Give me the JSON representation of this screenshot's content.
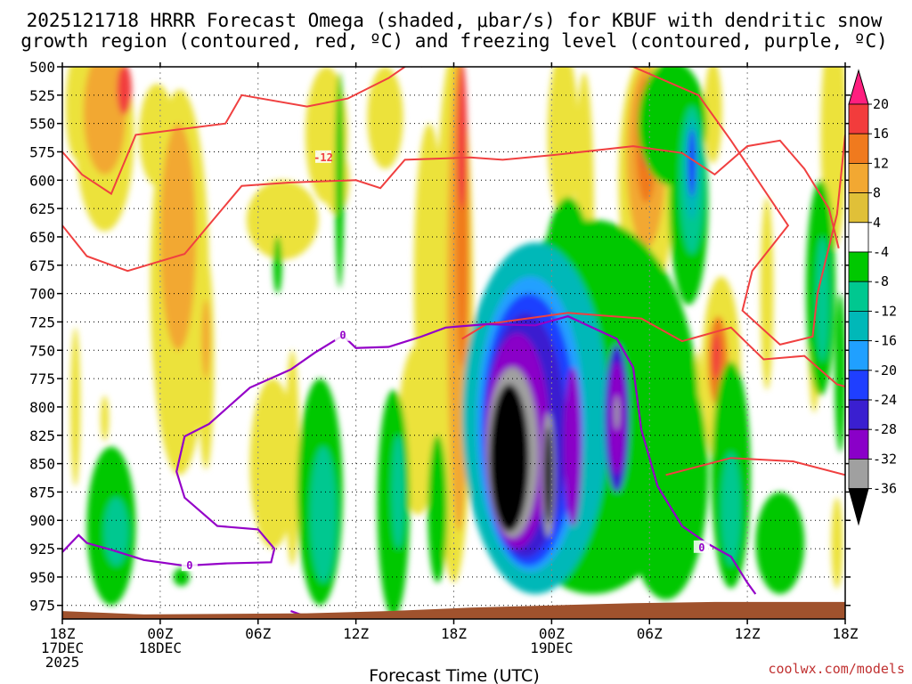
{
  "title_line1": "2025121718 HRRR Forecast Omega (shaded, μbar/s) for KBUF with dendritic snow",
  "title_line2": "growth region (contoured, red, ºC) and freezing level (contoured, purple, ºC)",
  "credit": "coolwx.com/models",
  "chart_data": {
    "type": "heatmap",
    "title": "2025121718 HRRR Forecast Omega (shaded, μbar/s) for KBUF with dendritic snow growth region (contoured, red, ºC) and freezing level (contoured, purple, ºC)",
    "xlabel": "Forecast Time (UTC)",
    "ylabel": "",
    "x_ticks": [
      {
        "h": 0,
        "l1": "18Z",
        "l2": "17DEC",
        "l3": "2025"
      },
      {
        "h": 6,
        "l1": "00Z",
        "l2": "18DEC",
        "l3": ""
      },
      {
        "h": 12,
        "l1": "06Z",
        "l2": "",
        "l3": ""
      },
      {
        "h": 18,
        "l1": "12Z",
        "l2": "",
        "l3": ""
      },
      {
        "h": 24,
        "l1": "18Z",
        "l2": "",
        "l3": ""
      },
      {
        "h": 30,
        "l1": "00Z",
        "l2": "19DEC",
        "l3": ""
      },
      {
        "h": 36,
        "l1": "06Z",
        "l2": "",
        "l3": ""
      },
      {
        "h": 42,
        "l1": "12Z",
        "l2": "",
        "l3": ""
      },
      {
        "h": 48,
        "l1": "18Z",
        "l2": "",
        "l3": ""
      }
    ],
    "xlim": [
      0,
      48
    ],
    "y_ticks": [
      "500",
      "525",
      "550",
      "575",
      "600",
      "625",
      "650",
      "675",
      "700",
      "725",
      "750",
      "775",
      "800",
      "825",
      "850",
      "875",
      "900",
      "925",
      "950",
      "975"
    ],
    "ylim": [
      500,
      987
    ],
    "grid": true,
    "colorbar": {
      "labels": [
        "20",
        "16",
        "12",
        "8",
        "4",
        "-4",
        "-8",
        "-12",
        "-16",
        "-20",
        "-24",
        "-28",
        "-32",
        "-36"
      ],
      "colors": [
        "#ff1f7f",
        "#f23c3c",
        "#f07a1e",
        "#f2a832",
        "#e0c038",
        "#ece23a",
        "#ffffff",
        "#00c800",
        "#00c890",
        "#00b8b8",
        "#20a0ff",
        "#1f3fff",
        "#3a1fd0",
        "#8a00c8",
        "#a0a0a0",
        "#000000"
      ]
    },
    "omega_cells": [
      {
        "h": 0.9,
        "p": 535,
        "dh": 1.4,
        "dp": 95,
        "v": 6
      },
      {
        "h": 2.6,
        "p": 560,
        "dh": 3.6,
        "dp": 170,
        "v": 6
      },
      {
        "h": 2.6,
        "p": 540,
        "dh": 2.6,
        "dp": 110,
        "v": 10
      },
      {
        "h": 3.8,
        "p": 520,
        "dh": 0.9,
        "dp": 45,
        "v": 18
      },
      {
        "h": 5.8,
        "p": 560,
        "dh": 2.2,
        "dp": 90,
        "v": 6
      },
      {
        "h": 7.2,
        "p": 690,
        "dh": 3.6,
        "dp": 340,
        "v": 6
      },
      {
        "h": 7.1,
        "p": 650,
        "dh": 2.2,
        "dp": 200,
        "v": 9
      },
      {
        "h": 8.8,
        "p": 760,
        "dh": 1.0,
        "dp": 190,
        "v": 6
      },
      {
        "h": 8.8,
        "p": 740,
        "dh": 0.5,
        "dp": 70,
        "v": 10
      },
      {
        "h": 0.8,
        "p": 800,
        "dh": 0.6,
        "dp": 140,
        "v": 5
      },
      {
        "h": 2.6,
        "p": 810,
        "dh": 0.5,
        "dp": 40,
        "v": 5
      },
      {
        "h": 12.9,
        "p": 850,
        "dh": 2.8,
        "dp": 150,
        "v": 5
      },
      {
        "h": 14.1,
        "p": 845,
        "dh": 0.9,
        "dp": 190,
        "v": 6
      },
      {
        "h": 13.5,
        "p": 635,
        "dh": 4.4,
        "dp": 70,
        "v": 5
      },
      {
        "h": 16.2,
        "p": 560,
        "dh": 2.6,
        "dp": 120,
        "v": 5
      },
      {
        "h": 16.8,
        "p": 600,
        "dh": 1.6,
        "dp": 60,
        "v": 6
      },
      {
        "h": 19.8,
        "p": 545,
        "dh": 2.2,
        "dp": 90,
        "v": 5
      },
      {
        "h": 21.8,
        "p": 820,
        "dh": 2.4,
        "dp": 150,
        "v": 6
      },
      {
        "h": 22.5,
        "p": 690,
        "dh": 1.9,
        "dp": 280,
        "v": 6
      },
      {
        "h": 24.0,
        "p": 720,
        "dh": 2.4,
        "dp": 470,
        "v": 6
      },
      {
        "h": 24.3,
        "p": 700,
        "dh": 1.4,
        "dp": 420,
        "v": 9
      },
      {
        "h": 24.5,
        "p": 630,
        "dh": 0.8,
        "dp": 270,
        "v": 13
      },
      {
        "h": 24.5,
        "p": 560,
        "dh": 0.6,
        "dp": 130,
        "v": 18
      },
      {
        "h": 30.7,
        "p": 560,
        "dh": 1.9,
        "dp": 150,
        "v": 5
      },
      {
        "h": 32.0,
        "p": 635,
        "dh": 1.2,
        "dp": 260,
        "v": 6
      },
      {
        "h": 34.3,
        "p": 780,
        "dh": 0.6,
        "dp": 220,
        "v": 5
      },
      {
        "h": 35.8,
        "p": 600,
        "dh": 3.4,
        "dp": 220,
        "v": 7
      },
      {
        "h": 35.8,
        "p": 580,
        "dh": 2.4,
        "dp": 160,
        "v": 10
      },
      {
        "h": 35.8,
        "p": 565,
        "dh": 1.3,
        "dp": 110,
        "v": 14
      },
      {
        "h": 35.8,
        "p": 555,
        "dh": 0.8,
        "dp": 70,
        "v": 19
      },
      {
        "h": 37.4,
        "p": 520,
        "dh": 0.9,
        "dp": 60,
        "v": 5
      },
      {
        "h": 38.9,
        "p": 615,
        "dh": 0.8,
        "dp": 160,
        "v": 5
      },
      {
        "h": 39.0,
        "p": 800,
        "dh": 0.5,
        "dp": 100,
        "v": 5
      },
      {
        "h": 40.4,
        "p": 770,
        "dh": 2.4,
        "dp": 170,
        "v": 6
      },
      {
        "h": 40.2,
        "p": 760,
        "dh": 1.2,
        "dp": 80,
        "v": 12
      },
      {
        "h": 40.1,
        "p": 755,
        "dh": 0.5,
        "dp": 40,
        "v": 18
      },
      {
        "h": 39.9,
        "p": 540,
        "dh": 1.1,
        "dp": 90,
        "v": 5
      },
      {
        "h": 43.2,
        "p": 700,
        "dh": 0.8,
        "dp": 170,
        "v": 5
      },
      {
        "h": 46.1,
        "p": 720,
        "dh": 0.8,
        "dp": 170,
        "v": 5
      },
      {
        "h": 47.3,
        "p": 560,
        "dh": 1.6,
        "dp": 200,
        "v": 5
      },
      {
        "h": 47.5,
        "p": 920,
        "dh": 0.7,
        "dp": 80,
        "v": 5
      },
      {
        "h": 3.0,
        "p": 905,
        "dh": 3.0,
        "dp": 140,
        "v": -6
      },
      {
        "h": 3.3,
        "p": 910,
        "dh": 1.5,
        "dp": 60,
        "v": -10
      },
      {
        "h": 7.3,
        "p": 950,
        "dh": 1.0,
        "dp": 16,
        "v": -6
      },
      {
        "h": 13.2,
        "p": 675,
        "dh": 0.55,
        "dp": 50,
        "v": -6
      },
      {
        "h": 17.0,
        "p": 600,
        "dh": 0.55,
        "dp": 190,
        "v": -6
      },
      {
        "h": 15.8,
        "p": 875,
        "dh": 2.8,
        "dp": 200,
        "v": -6
      },
      {
        "h": 16.0,
        "p": 895,
        "dh": 1.6,
        "dp": 120,
        "v": -10
      },
      {
        "h": 20.3,
        "p": 885,
        "dh": 2.0,
        "dp": 200,
        "v": -6
      },
      {
        "h": 20.6,
        "p": 875,
        "dh": 0.8,
        "dp": 100,
        "v": -10
      },
      {
        "h": 23.0,
        "p": 890,
        "dh": 1.2,
        "dp": 130,
        "v": -6
      },
      {
        "h": 32.5,
        "p": 800,
        "dh": 13.0,
        "dp": 330,
        "v": -6
      },
      {
        "h": 31.0,
        "p": 700,
        "dh": 3.2,
        "dp": 170,
        "v": -6
      },
      {
        "h": 37.0,
        "p": 860,
        "dh": 5.2,
        "dp": 220,
        "v": -6
      },
      {
        "h": 37.4,
        "p": 550,
        "dh": 4.2,
        "dp": 110,
        "v": -6
      },
      {
        "h": 38.4,
        "p": 620,
        "dh": 2.4,
        "dp": 180,
        "v": -6
      },
      {
        "h": 38.6,
        "p": 600,
        "dh": 1.5,
        "dp": 130,
        "v": -10
      },
      {
        "h": 38.6,
        "p": 590,
        "dh": 0.9,
        "dp": 90,
        "v": -14
      },
      {
        "h": 38.6,
        "p": 585,
        "dh": 0.5,
        "dp": 60,
        "v": -20
      },
      {
        "h": 41.0,
        "p": 860,
        "dh": 2.4,
        "dp": 200,
        "v": -6
      },
      {
        "h": 41.0,
        "p": 890,
        "dh": 1.2,
        "dp": 100,
        "v": -10
      },
      {
        "h": 44.0,
        "p": 920,
        "dh": 3.0,
        "dp": 90,
        "v": -6
      },
      {
        "h": 46.5,
        "p": 695,
        "dh": 1.8,
        "dp": 190,
        "v": -6
      },
      {
        "h": 46.6,
        "p": 705,
        "dh": 0.8,
        "dp": 110,
        "v": -10
      },
      {
        "h": 47.7,
        "p": 770,
        "dh": 0.7,
        "dp": 140,
        "v": -6
      },
      {
        "h": 29.0,
        "p": 810,
        "dh": 9.0,
        "dp": 310,
        "v": -12
      },
      {
        "h": 28.8,
        "p": 810,
        "dh": 7.6,
        "dp": 280,
        "v": -15
      },
      {
        "h": 28.7,
        "p": 815,
        "dh": 6.6,
        "dp": 260,
        "v": -18
      },
      {
        "h": 28.6,
        "p": 820,
        "dh": 5.8,
        "dp": 240,
        "v": -22
      },
      {
        "h": 28.4,
        "p": 825,
        "dh": 5.0,
        "dp": 215,
        "v": -26
      },
      {
        "h": 31.3,
        "p": 835,
        "dh": 1.1,
        "dp": 140,
        "v": -30
      },
      {
        "h": 27.9,
        "p": 830,
        "dh": 4.0,
        "dp": 190,
        "v": -30
      },
      {
        "h": 34.0,
        "p": 810,
        "dh": 1.5,
        "dp": 130,
        "v": -26
      },
      {
        "h": 34.0,
        "p": 810,
        "dh": 1.0,
        "dp": 100,
        "v": -30
      },
      {
        "h": 34.0,
        "p": 805,
        "dh": 0.3,
        "dp": 30,
        "v": -34
      },
      {
        "h": 27.6,
        "p": 840,
        "dh": 3.2,
        "dp": 150,
        "v": -34
      },
      {
        "h": 29.8,
        "p": 860,
        "dh": 0.8,
        "dp": 110,
        "v": -34
      },
      {
        "h": 27.4,
        "p": 845,
        "dh": 2.4,
        "dp": 130,
        "v": -38
      },
      {
        "h": 29.8,
        "p": 860,
        "dh": 0.5,
        "dp": 85,
        "v": -38
      }
    ],
    "dendritic_contours_C": [
      -12,
      -12,
      -12
    ],
    "dendritic_label": "-12",
    "dendritic_lines": [
      [
        [
          0,
          575
        ],
        [
          1.2,
          595
        ],
        [
          3,
          612
        ],
        [
          4.5,
          560
        ],
        [
          10,
          550
        ],
        [
          11,
          525
        ],
        [
          15,
          535
        ],
        [
          17.5,
          528
        ],
        [
          20,
          510
        ],
        [
          22,
          490
        ]
      ],
      [
        [
          0,
          640
        ],
        [
          1.5,
          667
        ],
        [
          4,
          680
        ],
        [
          7.5,
          665
        ],
        [
          11,
          605
        ],
        [
          14,
          602
        ],
        [
          18,
          600
        ],
        [
          19.5,
          607
        ],
        [
          21,
          582
        ],
        [
          25,
          580
        ],
        [
          27,
          582
        ],
        [
          30,
          578
        ],
        [
          35,
          570
        ],
        [
          38,
          576
        ],
        [
          40,
          595
        ],
        [
          42,
          570
        ],
        [
          44,
          565
        ],
        [
          45.5,
          590
        ],
        [
          47,
          625
        ],
        [
          47.6,
          660
        ]
      ],
      [
        [
          24.5,
          740
        ],
        [
          26,
          727
        ],
        [
          31,
          717
        ],
        [
          35.5,
          722
        ],
        [
          38,
          742
        ],
        [
          41,
          730
        ],
        [
          43,
          758
        ],
        [
          45.5,
          755
        ],
        [
          47.5,
          780
        ],
        [
          48,
          782
        ]
      ],
      [
        [
          22,
          500
        ],
        [
          24,
          480
        ],
        [
          28,
          490
        ],
        [
          35,
          500
        ],
        [
          39,
          525
        ],
        [
          41,
          565
        ],
        [
          44.5,
          640
        ],
        [
          42.3,
          680
        ],
        [
          41.7,
          715
        ],
        [
          44,
          745
        ],
        [
          46,
          738
        ],
        [
          46.3,
          700
        ],
        [
          47.5,
          630
        ],
        [
          48,
          560
        ]
      ],
      [
        [
          37,
          860
        ],
        [
          41,
          845
        ],
        [
          44.8,
          848
        ],
        [
          48,
          860
        ]
      ]
    ],
    "freezing_label": "0",
    "freezing_lines": [
      [
        [
          0,
          928
        ],
        [
          1,
          913
        ],
        [
          1.5,
          920
        ],
        [
          3,
          926
        ],
        [
          5,
          935
        ],
        [
          7.5,
          940
        ],
        [
          10,
          938
        ],
        [
          12.8,
          937
        ],
        [
          13,
          925
        ],
        [
          12,
          908
        ],
        [
          9.5,
          905
        ],
        [
          7.5,
          880
        ],
        [
          7,
          857
        ],
        [
          7.5,
          826
        ],
        [
          9,
          815
        ],
        [
          11.5,
          783
        ],
        [
          14,
          767
        ],
        [
          15.5,
          752
        ],
        [
          17.2,
          737
        ],
        [
          18,
          748
        ],
        [
          20,
          747
        ],
        [
          22,
          738
        ],
        [
          23.5,
          730
        ],
        [
          26,
          727
        ],
        [
          29,
          728
        ],
        [
          31,
          720
        ],
        [
          34,
          740
        ],
        [
          35,
          765
        ],
        [
          35.5,
          820
        ],
        [
          36.5,
          870
        ],
        [
          38,
          905
        ],
        [
          39.5,
          920
        ],
        [
          41,
          932
        ],
        [
          42,
          955
        ],
        [
          42.5,
          965
        ]
      ],
      [
        [
          14,
          980
        ],
        [
          15,
          985
        ],
        [
          15.5,
          985
        ]
      ]
    ],
    "surface_terrain_hPa": [
      [
        0,
        980
      ],
      [
        5,
        983
      ],
      [
        15,
        982
      ],
      [
        20,
        980
      ],
      [
        25,
        977
      ],
      [
        30,
        975
      ],
      [
        35,
        973
      ],
      [
        40,
        972
      ],
      [
        48,
        972
      ]
    ]
  }
}
